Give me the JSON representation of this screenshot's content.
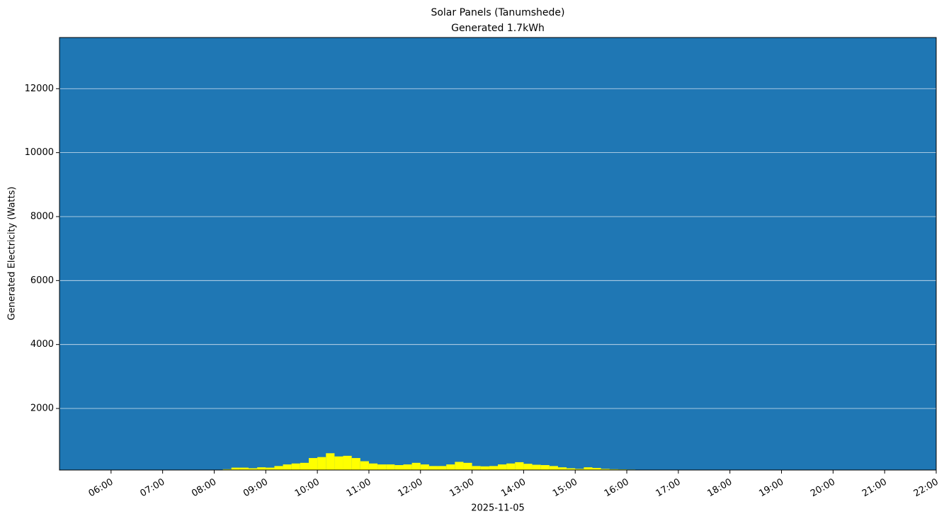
{
  "chart_data": {
    "type": "bar",
    "title": "Solar Panels (Tanumshede)",
    "subtitle": "Generated 1.7kWh",
    "xlabel": "2025-11-05",
    "ylabel": "Generated Electricity (Watts)",
    "x": [
      "08:15",
      "08:25",
      "08:35",
      "08:45",
      "08:55",
      "09:05",
      "09:15",
      "09:25",
      "09:35",
      "09:45",
      "09:55",
      "10:05",
      "10:15",
      "10:25",
      "10:35",
      "10:45",
      "10:55",
      "11:05",
      "11:15",
      "11:25",
      "11:35",
      "11:45",
      "11:55",
      "12:05",
      "12:15",
      "12:25",
      "12:35",
      "12:45",
      "12:55",
      "13:05",
      "13:15",
      "13:25",
      "13:35",
      "13:45",
      "13:55",
      "14:05",
      "14:15",
      "14:25",
      "14:35",
      "14:45",
      "14:55",
      "15:05",
      "15:15",
      "15:25",
      "15:35",
      "15:45",
      "15:55",
      "16:05",
      "16:15"
    ],
    "values": [
      100,
      150,
      150,
      130,
      160,
      150,
      200,
      250,
      280,
      300,
      450,
      480,
      600,
      500,
      520,
      450,
      350,
      280,
      250,
      250,
      230,
      250,
      300,
      250,
      200,
      200,
      250,
      330,
      300,
      200,
      190,
      200,
      250,
      280,
      320,
      270,
      240,
      230,
      200,
      160,
      130,
      110,
      160,
      140,
      110,
      100,
      95,
      90,
      80
    ],
    "color": "#ffff00",
    "background": "#1f77b4",
    "xlim": [
      "05:00",
      "22:00"
    ],
    "xticks": [
      "06:00",
      "07:00",
      "08:00",
      "09:00",
      "10:00",
      "11:00",
      "12:00",
      "13:00",
      "14:00",
      "15:00",
      "16:00",
      "17:00",
      "18:00",
      "19:00",
      "20:00",
      "21:00",
      "22:00"
    ],
    "ylim": [
      75,
      13600
    ],
    "yticks": [
      2000,
      4000,
      6000,
      8000,
      10000,
      12000
    ],
    "grid": true
  }
}
